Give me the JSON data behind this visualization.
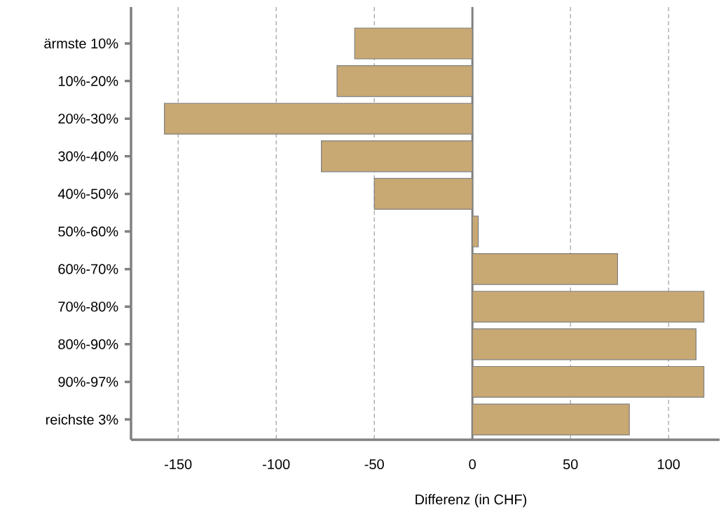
{
  "chart_data": {
    "type": "bar",
    "orientation": "horizontal",
    "xlabel": "Differenz (in CHF)",
    "categories": [
      "ärmste 10%",
      "10%-20%",
      "20%-30%",
      "30%-40%",
      "40%-50%",
      "50%-60%",
      "60%-70%",
      "70%-80%",
      "80%-90%",
      "90%-97%",
      "reichste 3%"
    ],
    "values": [
      -60,
      -69,
      -157,
      -77,
      -50,
      3,
      74,
      118,
      114,
      118,
      80
    ],
    "color": "#c8a873",
    "xlim": [
      -174,
      126
    ],
    "xticks": [
      -150,
      -100,
      -50,
      0,
      50,
      100
    ],
    "grid": "x",
    "ref_lines": [
      {
        "axis": "x",
        "value": 0,
        "color": "#808080"
      }
    ]
  }
}
